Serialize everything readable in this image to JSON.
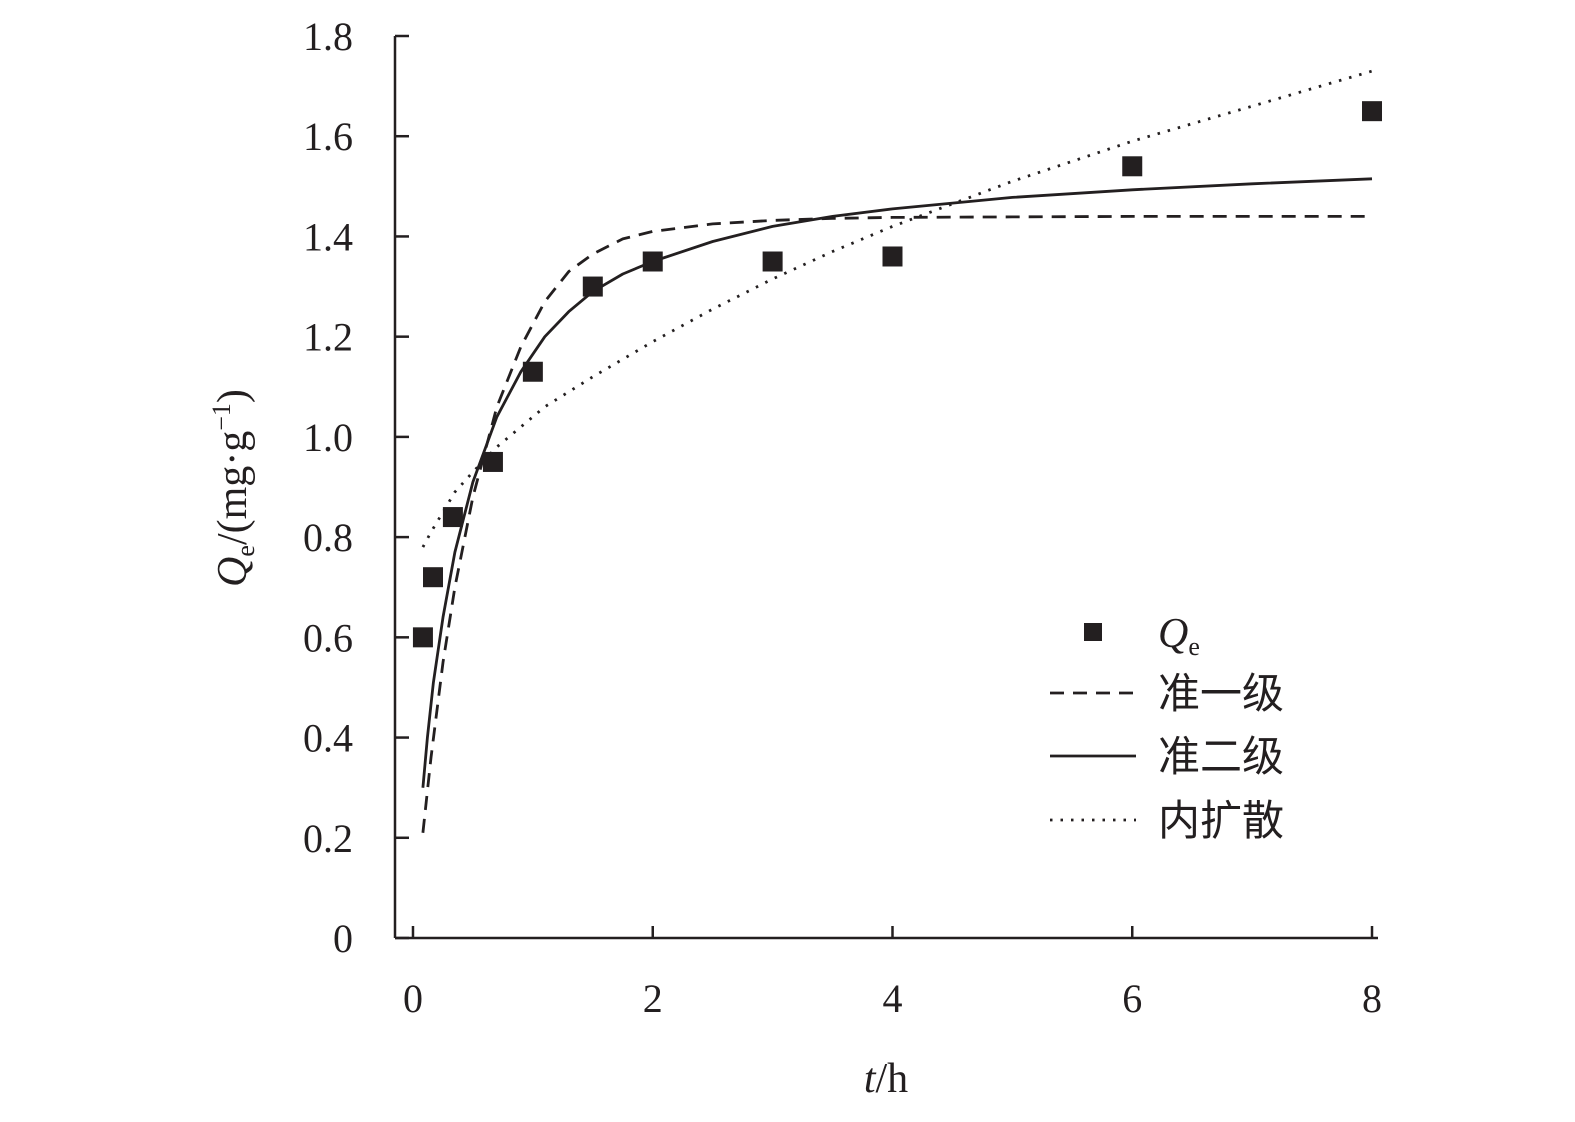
{
  "chart_data": {
    "type": "scatter",
    "title": "",
    "xlabel": {
      "italic": "t",
      "rest": "/h"
    },
    "ylabel": {
      "italic": "Q",
      "sub": "e",
      "rest": "/(mg·g",
      "sup": "−1",
      "close": ")"
    },
    "xlim": [
      -0.15,
      8.05
    ],
    "ylim": [
      0,
      1.8
    ],
    "x_ticks": [
      0,
      2,
      4,
      6,
      8
    ],
    "x_tick_labels": [
      "0",
      "2",
      "4",
      "6",
      "8"
    ],
    "y_ticks": [
      0,
      0.2,
      0.4,
      0.6,
      0.8,
      1.0,
      1.2,
      1.4,
      1.6,
      1.8
    ],
    "y_tick_labels": [
      "0",
      "0.2",
      "0.4",
      "0.6",
      "0.8",
      "1.0",
      "1.2",
      "1.4",
      "1.6",
      "1.8"
    ],
    "grid": false,
    "legend_position": "lower-right",
    "series": [
      {
        "name": "Qe",
        "legend": {
          "italic": "Q",
          "sub": "e"
        },
        "kind": "scatter",
        "marker": "square",
        "color": "#231f20",
        "x": [
          0.083,
          0.167,
          0.333,
          0.667,
          1,
          1.5,
          2,
          3,
          4,
          6,
          8
        ],
        "y": [
          0.6,
          0.72,
          0.84,
          0.95,
          1.13,
          1.3,
          1.35,
          1.35,
          1.36,
          1.54,
          1.65
        ]
      },
      {
        "name": "准一级",
        "kind": "line",
        "dash": "dashed",
        "color": "#231f20",
        "x": [
          0.083,
          0.15,
          0.25,
          0.35,
          0.5,
          0.7,
          0.9,
          1.1,
          1.3,
          1.5,
          1.75,
          2,
          2.5,
          3,
          3.5,
          4,
          5,
          6,
          7,
          8
        ],
        "y": [
          0.21,
          0.36,
          0.55,
          0.7,
          0.88,
          1.06,
          1.18,
          1.27,
          1.33,
          1.365,
          1.395,
          1.41,
          1.425,
          1.432,
          1.436,
          1.438,
          1.439,
          1.44,
          1.44,
          1.44
        ]
      },
      {
        "name": "准二级",
        "kind": "line",
        "dash": "solid",
        "color": "#231f20",
        "x": [
          0.083,
          0.12,
          0.17,
          0.25,
          0.35,
          0.5,
          0.7,
          0.9,
          1.1,
          1.3,
          1.5,
          1.75,
          2,
          2.5,
          3,
          3.5,
          4,
          5,
          6,
          7,
          8
        ],
        "y": [
          0.3,
          0.4,
          0.51,
          0.64,
          0.77,
          0.91,
          1.04,
          1.13,
          1.2,
          1.25,
          1.29,
          1.325,
          1.35,
          1.39,
          1.42,
          1.44,
          1.455,
          1.478,
          1.493,
          1.505,
          1.515
        ]
      },
      {
        "name": "内扩散",
        "kind": "line",
        "dash": "dotted",
        "color": "#231f20",
        "x": [
          0.083,
          0.15,
          0.25,
          0.35,
          0.5,
          0.7,
          0.9,
          1.1,
          1.3,
          1.5,
          2,
          2.5,
          3,
          3.5,
          4,
          4.5,
          5,
          5.5,
          6,
          6.5,
          7,
          7.5,
          8
        ],
        "y": [
          0.78,
          0.81,
          0.85,
          0.89,
          0.93,
          0.98,
          1.02,
          1.06,
          1.09,
          1.12,
          1.19,
          1.255,
          1.315,
          1.37,
          1.42,
          1.465,
          1.51,
          1.55,
          1.59,
          1.625,
          1.66,
          1.695,
          1.73
        ]
      }
    ]
  }
}
